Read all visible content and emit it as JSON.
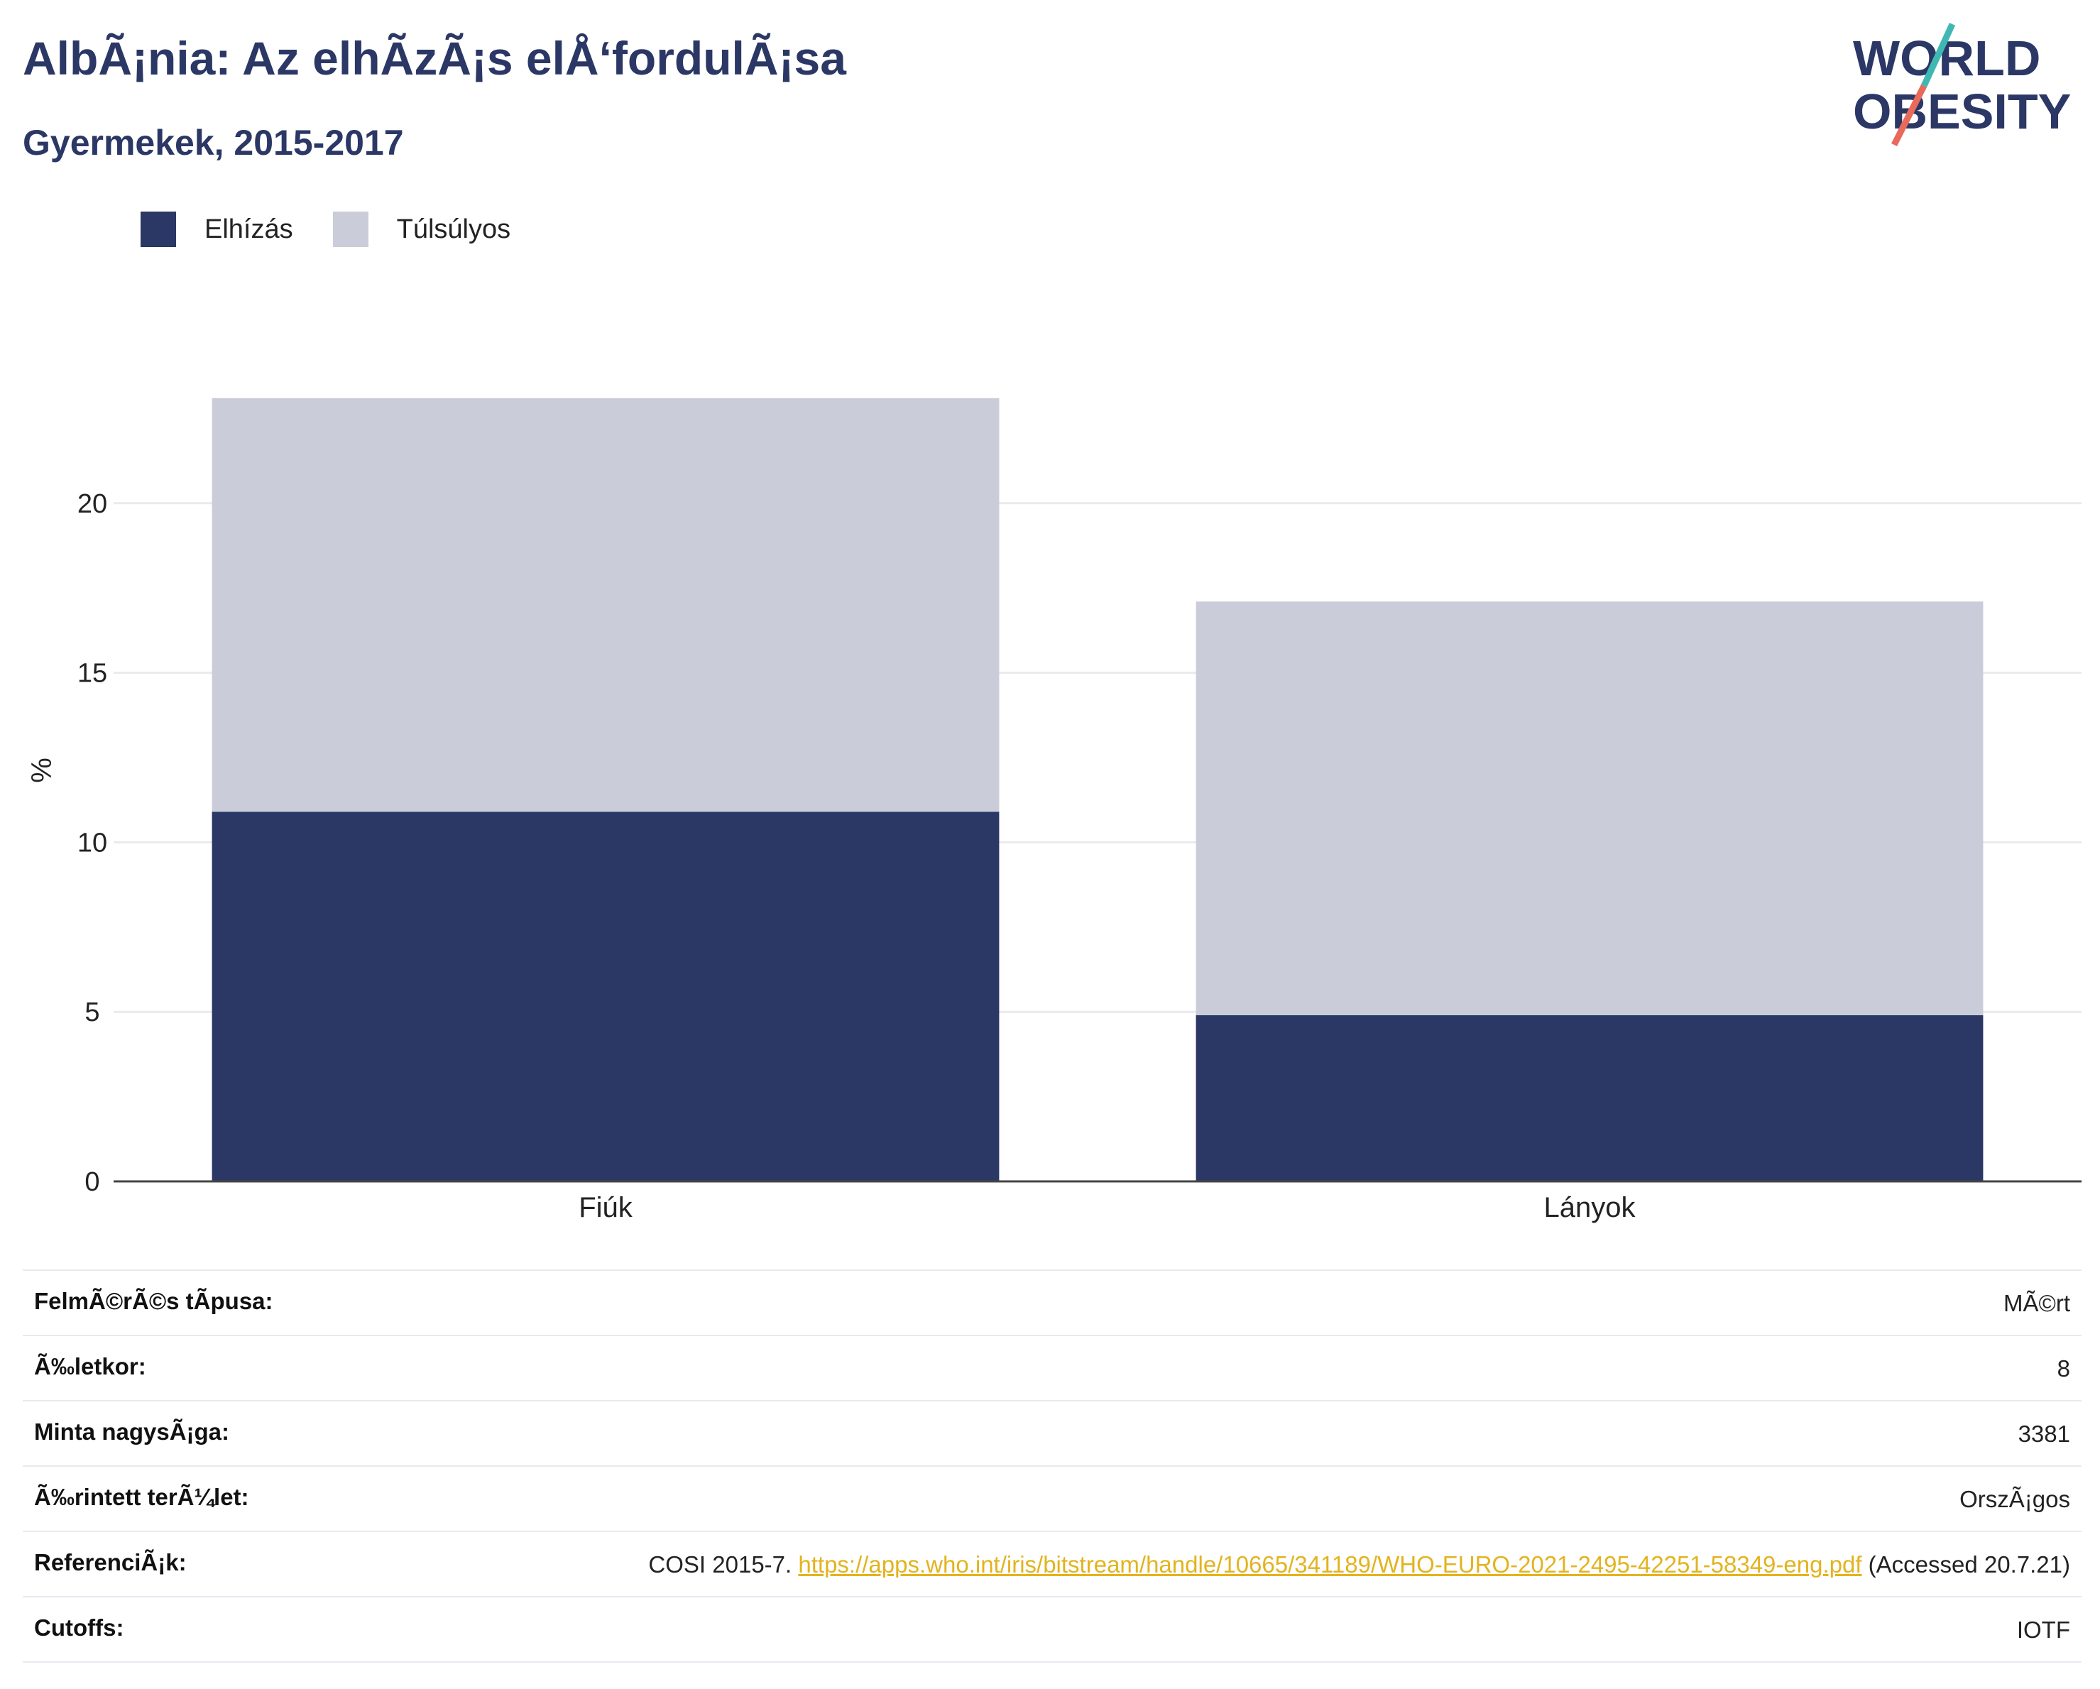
{
  "header": {
    "title": "AlbÃ¡nia: Az elhÃzÃ¡s elÅ‘fordulÃ¡sa",
    "subtitle": "Gyermekek, 2015-2017"
  },
  "logo": {
    "line1": "WORLD",
    "line2": "OBESITY",
    "text_color": "#2b3765",
    "slash_colors": [
      "#3fb8b3",
      "#e86a5a"
    ]
  },
  "chart_data": {
    "type": "bar",
    "stacked": true,
    "categories": [
      "Fiúk",
      "Lányok"
    ],
    "series": [
      {
        "name": "Elhízás",
        "color": "#2b3765",
        "values": [
          10.9,
          4.9
        ]
      },
      {
        "name": "Túlsúlyos",
        "color": "#cacdd9",
        "values": [
          12.2,
          12.2
        ]
      }
    ],
    "ylabel": "%",
    "xlabel": "",
    "ylim": [
      0,
      25
    ],
    "yticks": [
      0,
      5,
      10,
      15,
      20
    ],
    "grid": true,
    "legend_position": "top-left"
  },
  "meta": {
    "rows": [
      {
        "key": "FelmÃ©rÃ©s tÃpusa:",
        "value": "MÃ©rt"
      },
      {
        "key": "Ã‰letkor:",
        "value": "8"
      },
      {
        "key": "Minta nagysÃ¡ga:",
        "value": "3381"
      },
      {
        "key": "Ã‰rintett terÃ¼let:",
        "value": "OrszÃ¡gos"
      }
    ],
    "reference": {
      "key": "ReferenciÃ¡k:",
      "prefix": "COSI 2015-7. ",
      "link": "https://apps.who.int/iris/bitstream/handle/10665/341189/WHO-EURO-2021-2495-42251-58349-eng.pdf",
      "suffix": " (Accessed 20.7.21)"
    },
    "cutoffs": {
      "key": "Cutoffs:",
      "value": "IOTF"
    }
  }
}
